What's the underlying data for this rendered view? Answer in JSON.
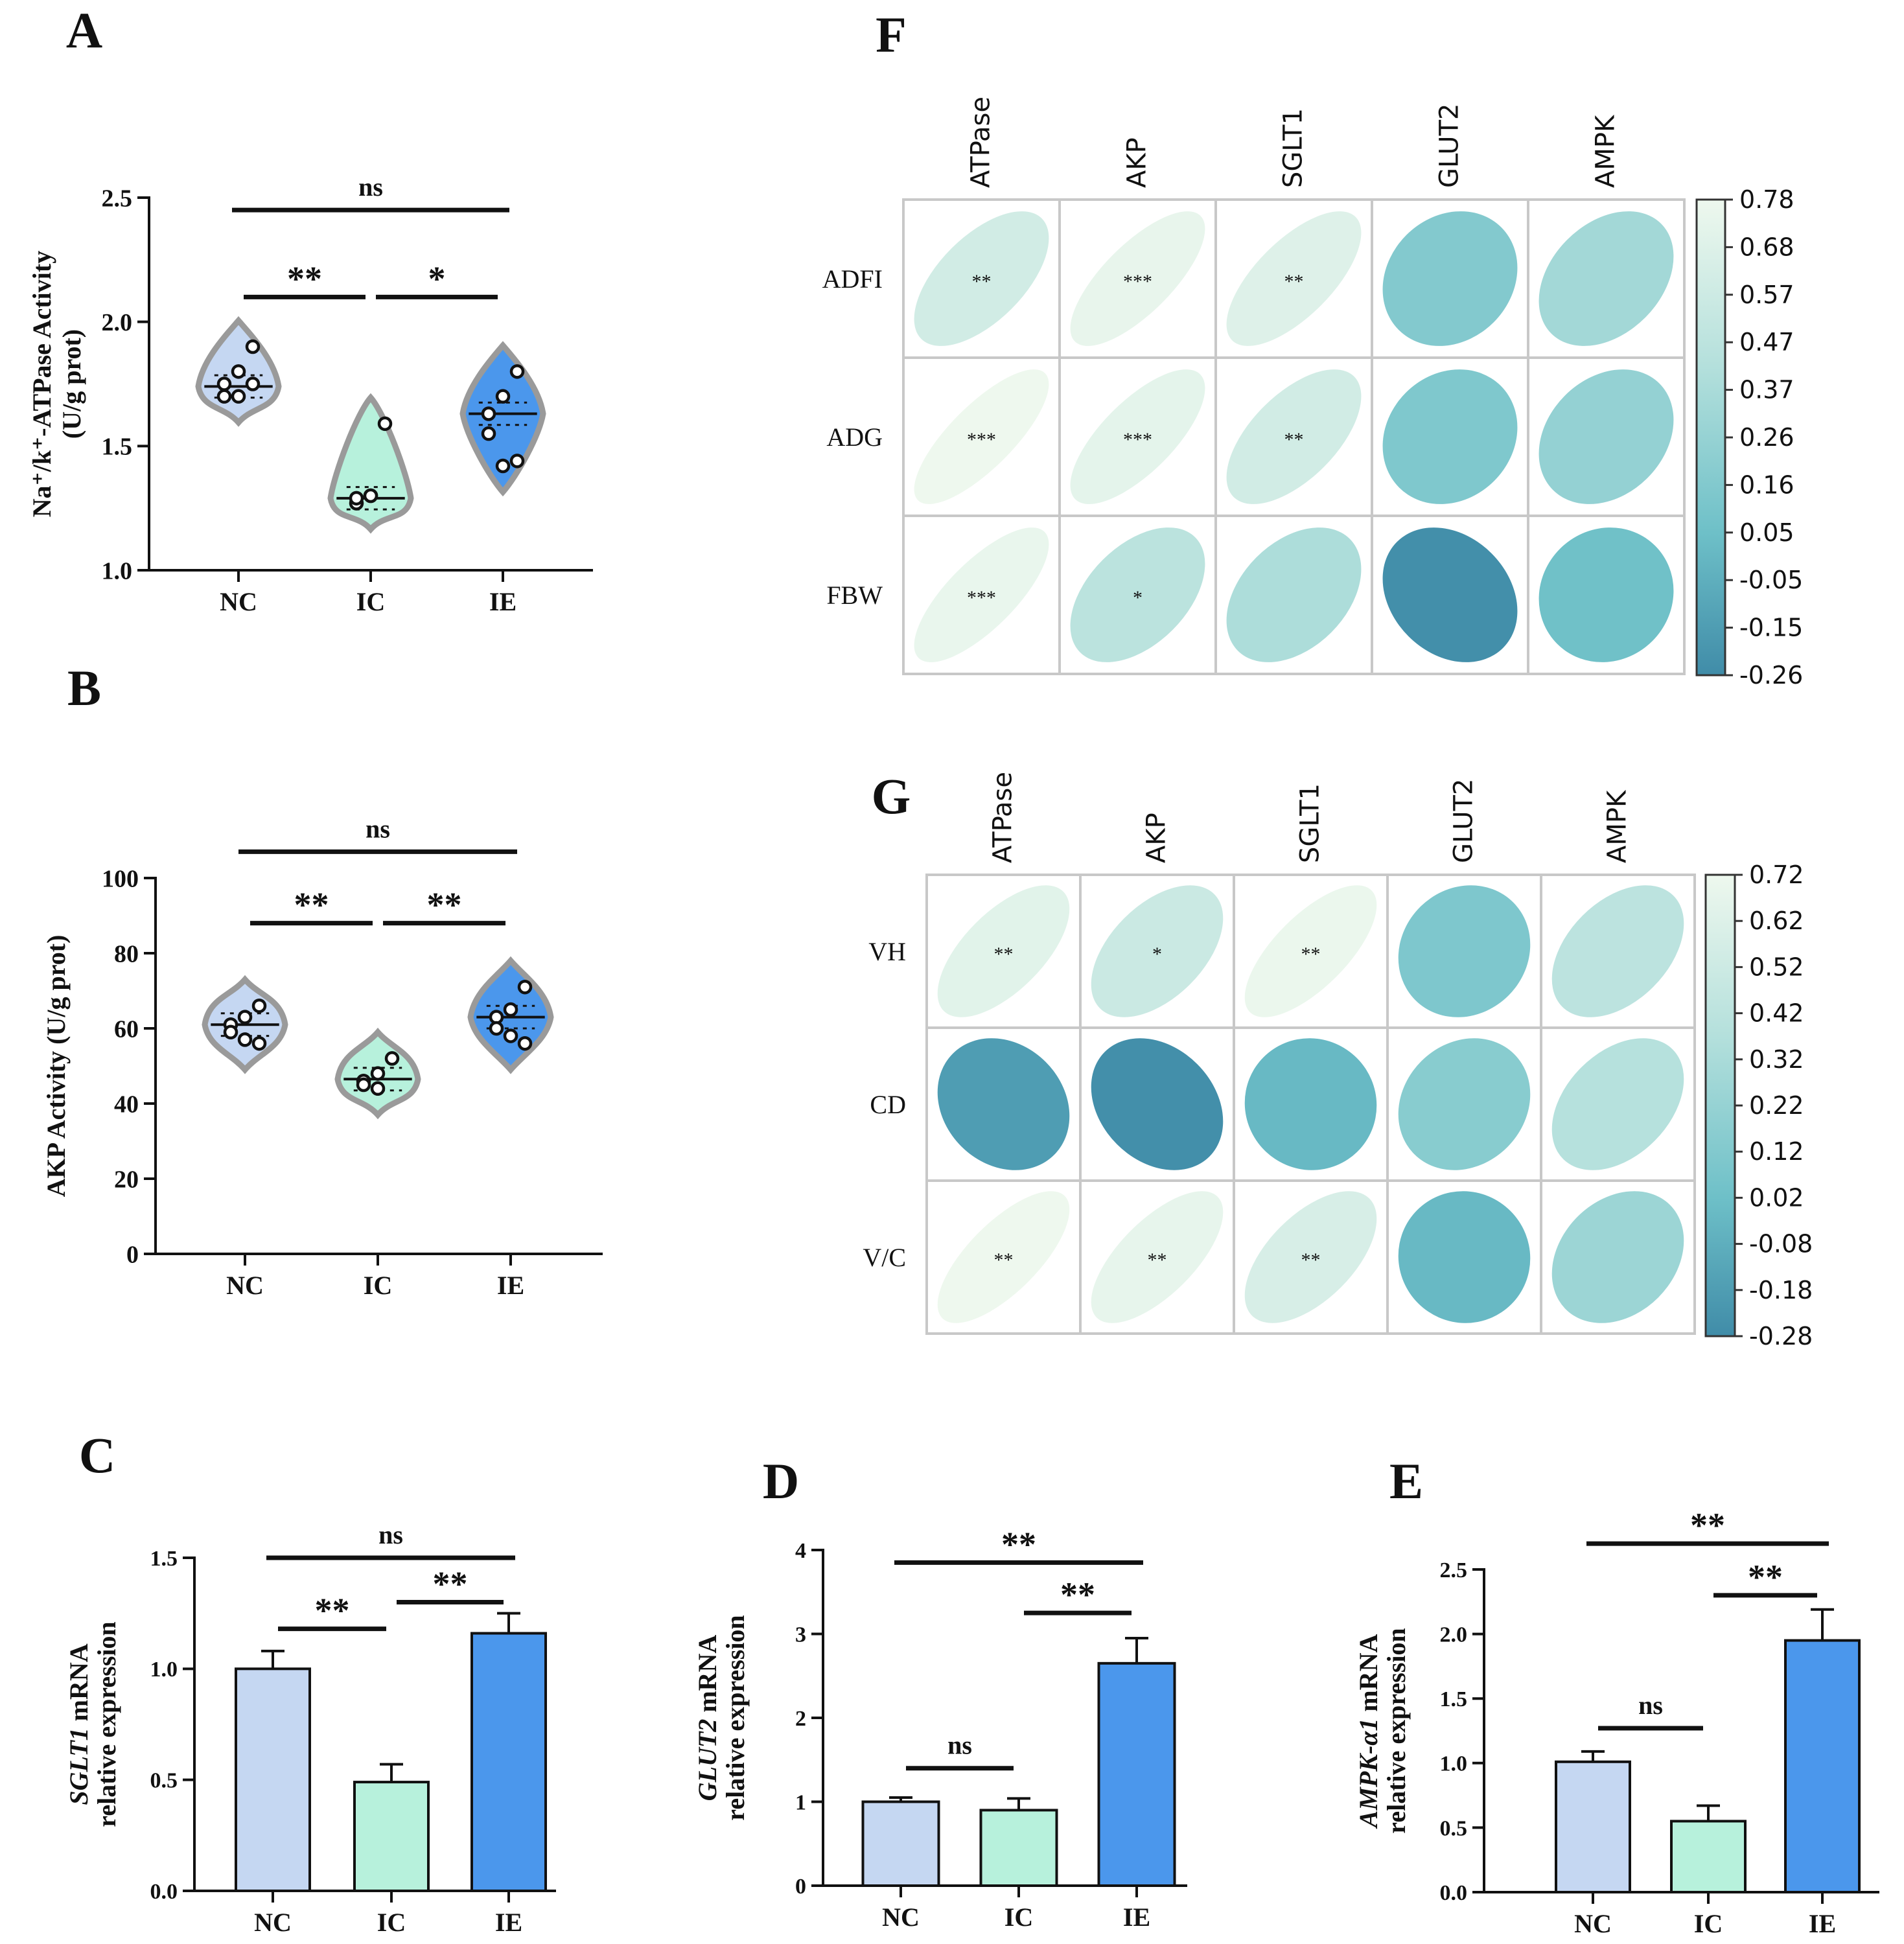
{
  "chart_data": [
    {
      "panel": "A",
      "type": "violin",
      "ylabel": "Na⁺/k⁺-ATPase Activity\n(U/g prot)",
      "ylim": [
        1.0,
        2.5
      ],
      "yticks": [
        "1.0",
        "1.5",
        "2.0",
        "2.5"
      ],
      "ytick_values": [
        1.0,
        1.5,
        2.0,
        2.5
      ],
      "categories": [
        "NC",
        "IC",
        "IE"
      ],
      "colors": [
        "#c5d7f2",
        "#b7f1dc",
        "#4b97ec"
      ],
      "points": [
        [
          1.9,
          1.8,
          1.75,
          1.7,
          1.7,
          1.75
        ],
        [
          1.59,
          1.3,
          1.27,
          1.29,
          1.3
        ],
        [
          1.8,
          1.7,
          1.63,
          1.55,
          1.42,
          1.44
        ]
      ],
      "medians": [
        1.74,
        1.29,
        1.63
      ],
      "brackets": [
        {
          "from": 0,
          "to": 2,
          "label": "ns",
          "level": 2.45
        },
        {
          "from": 0,
          "to": 1,
          "label": "**",
          "level": 2.1
        },
        {
          "from": 1,
          "to": 2,
          "label": "*",
          "level": 2.1
        }
      ]
    },
    {
      "panel": "B",
      "type": "violin",
      "ylabel": "AKP Activity (U/g prot)",
      "ylim": [
        0,
        100
      ],
      "yticks": [
        "0",
        "20",
        "40",
        "60",
        "80",
        "100"
      ],
      "ytick_values": [
        0,
        20,
        40,
        60,
        80,
        100
      ],
      "categories": [
        "NC",
        "IC",
        "IE"
      ],
      "colors": [
        "#c5d7f2",
        "#b7f1dc",
        "#4b97ec"
      ],
      "points": [
        [
          66,
          63,
          61,
          59,
          57,
          56
        ],
        [
          52,
          48,
          46,
          45,
          44
        ],
        [
          71,
          65,
          63,
          60,
          58,
          56
        ]
      ],
      "medians": [
        61,
        46.5,
        63
      ],
      "brackets": [
        {
          "from": 0,
          "to": 2,
          "label": "ns",
          "level": 107
        },
        {
          "from": 0,
          "to": 1,
          "label": "**",
          "level": 88
        },
        {
          "from": 1,
          "to": 2,
          "label": "**",
          "level": 88
        }
      ]
    },
    {
      "panel": "C",
      "type": "bar",
      "ylabel_italic": "SGLT1",
      "ylabel_rest": " mRNA",
      "ylabel2": "relative expression",
      "ylim": [
        0,
        1.5
      ],
      "yticks": [
        "0.0",
        "0.5",
        "1.0",
        "1.5"
      ],
      "ytick_values": [
        0,
        0.5,
        1.0,
        1.5
      ],
      "categories": [
        "NC",
        "IC",
        "IE"
      ],
      "values": [
        1.0,
        0.49,
        1.16
      ],
      "errors": [
        0.08,
        0.08,
        0.09
      ],
      "colors": [
        "#c5d7f2",
        "#b7f1dc",
        "#4b97ec"
      ],
      "brackets": [
        {
          "from": 0,
          "to": 2,
          "label": "ns",
          "level": 1.5
        },
        {
          "from": 0,
          "to": 1,
          "label": "**",
          "level": 1.18
        },
        {
          "from": 1,
          "to": 2,
          "label": "**",
          "level": 1.3
        }
      ]
    },
    {
      "panel": "D",
      "type": "bar",
      "ylabel_italic": "GLUT2",
      "ylabel_rest": " mRNA",
      "ylabel2": "relative expression",
      "ylim": [
        0,
        4
      ],
      "yticks": [
        "0",
        "1",
        "2",
        "3",
        "4"
      ],
      "ytick_values": [
        0,
        1,
        2,
        3,
        4
      ],
      "categories": [
        "NC",
        "IC",
        "IE"
      ],
      "values": [
        1.0,
        0.9,
        2.65
      ],
      "errors": [
        0.05,
        0.14,
        0.3
      ],
      "colors": [
        "#c5d7f2",
        "#b7f1dc",
        "#4b97ec"
      ],
      "brackets": [
        {
          "from": 0,
          "to": 2,
          "label": "**",
          "level": 3.85
        },
        {
          "from": 1,
          "to": 2,
          "label": "**",
          "level": 3.25
        },
        {
          "from": 0,
          "to": 1,
          "label": "ns",
          "level": 1.4
        }
      ]
    },
    {
      "panel": "E",
      "type": "bar",
      "ylabel_italic": "AMPK-α1",
      "ylabel_rest": " mRNA",
      "ylabel2": "relative expression",
      "ylim": [
        0,
        2.5
      ],
      "yticks": [
        "0.0",
        "0.5",
        "1.0",
        "1.5",
        "2.0",
        "2.5"
      ],
      "ytick_values": [
        0,
        0.5,
        1.0,
        1.5,
        2.0,
        2.5
      ],
      "categories": [
        "NC",
        "IC",
        "IE"
      ],
      "values": [
        1.01,
        0.55,
        1.95
      ],
      "errors": [
        0.08,
        0.12,
        0.24
      ],
      "colors": [
        "#c5d7f2",
        "#b7f1dc",
        "#4b97ec"
      ],
      "brackets": [
        {
          "from": 0,
          "to": 2,
          "label": "**",
          "level": 2.7
        },
        {
          "from": 1,
          "to": 2,
          "label": "**",
          "level": 2.3
        },
        {
          "from": 0,
          "to": 1,
          "label": "ns",
          "level": 1.27
        }
      ]
    },
    {
      "panel": "F",
      "type": "heatmap",
      "columns": [
        "ATPase",
        "AKP",
        "SGLT1",
        "GLUT2",
        "AMPK"
      ],
      "rows": [
        "ADFI",
        "ADG",
        "FBW"
      ],
      "values": [
        [
          0.6,
          0.74,
          0.68,
          0.16,
          0.33
        ],
        [
          0.78,
          0.72,
          0.6,
          0.14,
          0.25
        ],
        [
          0.75,
          0.46,
          0.38,
          -0.24,
          0.06
        ]
      ],
      "stars": [
        [
          "**",
          "***",
          "**",
          "",
          ""
        ],
        [
          "***",
          "***",
          "**",
          "",
          ""
        ],
        [
          "***",
          "*",
          "",
          "",
          ""
        ]
      ],
      "colorbar_labels": [
        "0.78",
        "0.68",
        "0.57",
        "0.47",
        "0.37",
        "0.26",
        "0.16",
        "0.05",
        "-0.05",
        "-0.15",
        "-0.26"
      ],
      "range": [
        -0.26,
        0.78
      ]
    },
    {
      "panel": "G",
      "type": "heatmap",
      "columns": [
        "ATPase",
        "AKP",
        "SGLT1",
        "GLUT2",
        "AMPK"
      ],
      "rows": [
        "VH",
        "CD",
        "V/C"
      ],
      "values": [
        [
          0.64,
          0.5,
          0.7,
          0.1,
          0.42
        ],
        [
          -0.18,
          -0.26,
          -0.02,
          0.15,
          0.38
        ],
        [
          0.72,
          0.68,
          0.58,
          -0.02,
          0.25
        ]
      ],
      "stars": [
        [
          "**",
          "*",
          "**",
          "",
          ""
        ],
        [
          "",
          "",
          "",
          "",
          ""
        ],
        [
          "**",
          "**",
          "**",
          "",
          ""
        ]
      ],
      "colorbar_labels": [
        "0.72",
        "0.62",
        "0.52",
        "0.42",
        "0.32",
        "0.22",
        "0.12",
        "0.02",
        "-0.08",
        "-0.18",
        "-0.28"
      ],
      "range": [
        -0.28,
        0.72
      ]
    }
  ]
}
